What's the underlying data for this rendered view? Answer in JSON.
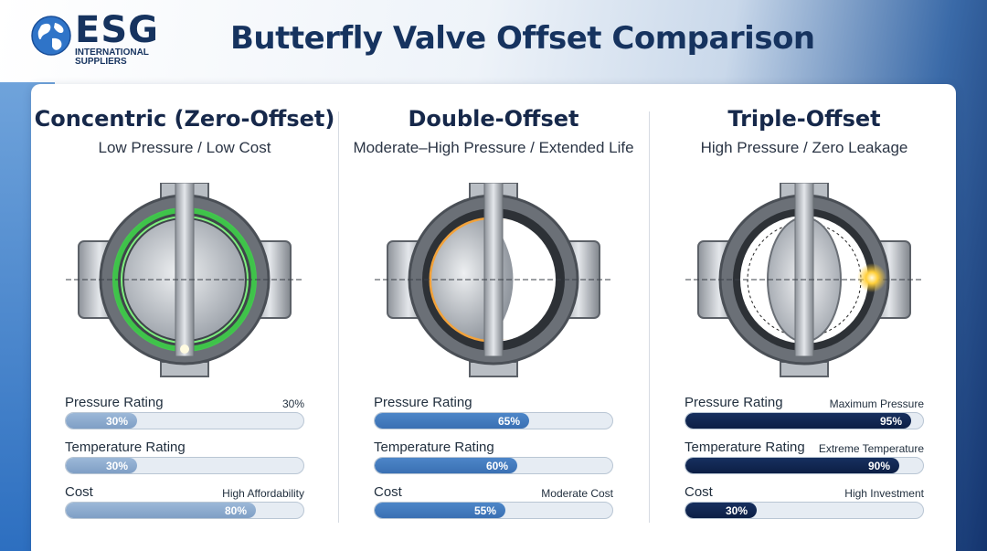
{
  "brand": {
    "name": "ESG",
    "sub_line1": "INTERNATIONAL",
    "sub_line2": "SUPPLIERS",
    "color": "#16335f"
  },
  "title": "Butterfly Valve Offset Comparison",
  "columns": [
    {
      "title": "Concentric (Zero-Offset)",
      "subtitle": "Low Pressure / Low Cost",
      "glow_color": "#3fd14a",
      "metrics": [
        {
          "label": "Pressure Rating",
          "note": "30%",
          "value": 30,
          "value_text": "30%"
        },
        {
          "label": "Temperature Rating",
          "note": "",
          "value": 30,
          "value_text": "30%"
        },
        {
          "label": "Cost",
          "note": "High Affordability",
          "value": 80,
          "value_text": "80%"
        }
      ]
    },
    {
      "title": "Double-Offset",
      "subtitle": "Moderate–High Pressure / Extended Life",
      "glow_color": "#f2a23a",
      "metrics": [
        {
          "label": "Pressure Rating",
          "note": "",
          "value": 65,
          "value_text": "65%"
        },
        {
          "label": "Temperature Rating",
          "note": "",
          "value": 60,
          "value_text": "60%"
        },
        {
          "label": "Cost",
          "note": "Moderate Cost",
          "value": 55,
          "value_text": "55%"
        }
      ]
    },
    {
      "title": "Triple-Offset",
      "subtitle": "High Pressure / Zero Leakage",
      "glow_color": "#ffcf3a",
      "metrics": [
        {
          "label": "Pressure Rating",
          "note": "Maximum Pressure",
          "value": 95,
          "value_text": "95%"
        },
        {
          "label": "Temperature Rating",
          "note": "Extreme Temperature",
          "value": 90,
          "value_text": "90%"
        },
        {
          "label": "Cost",
          "note": "High Investment",
          "value": 30,
          "value_text": "30%"
        }
      ]
    }
  ]
}
